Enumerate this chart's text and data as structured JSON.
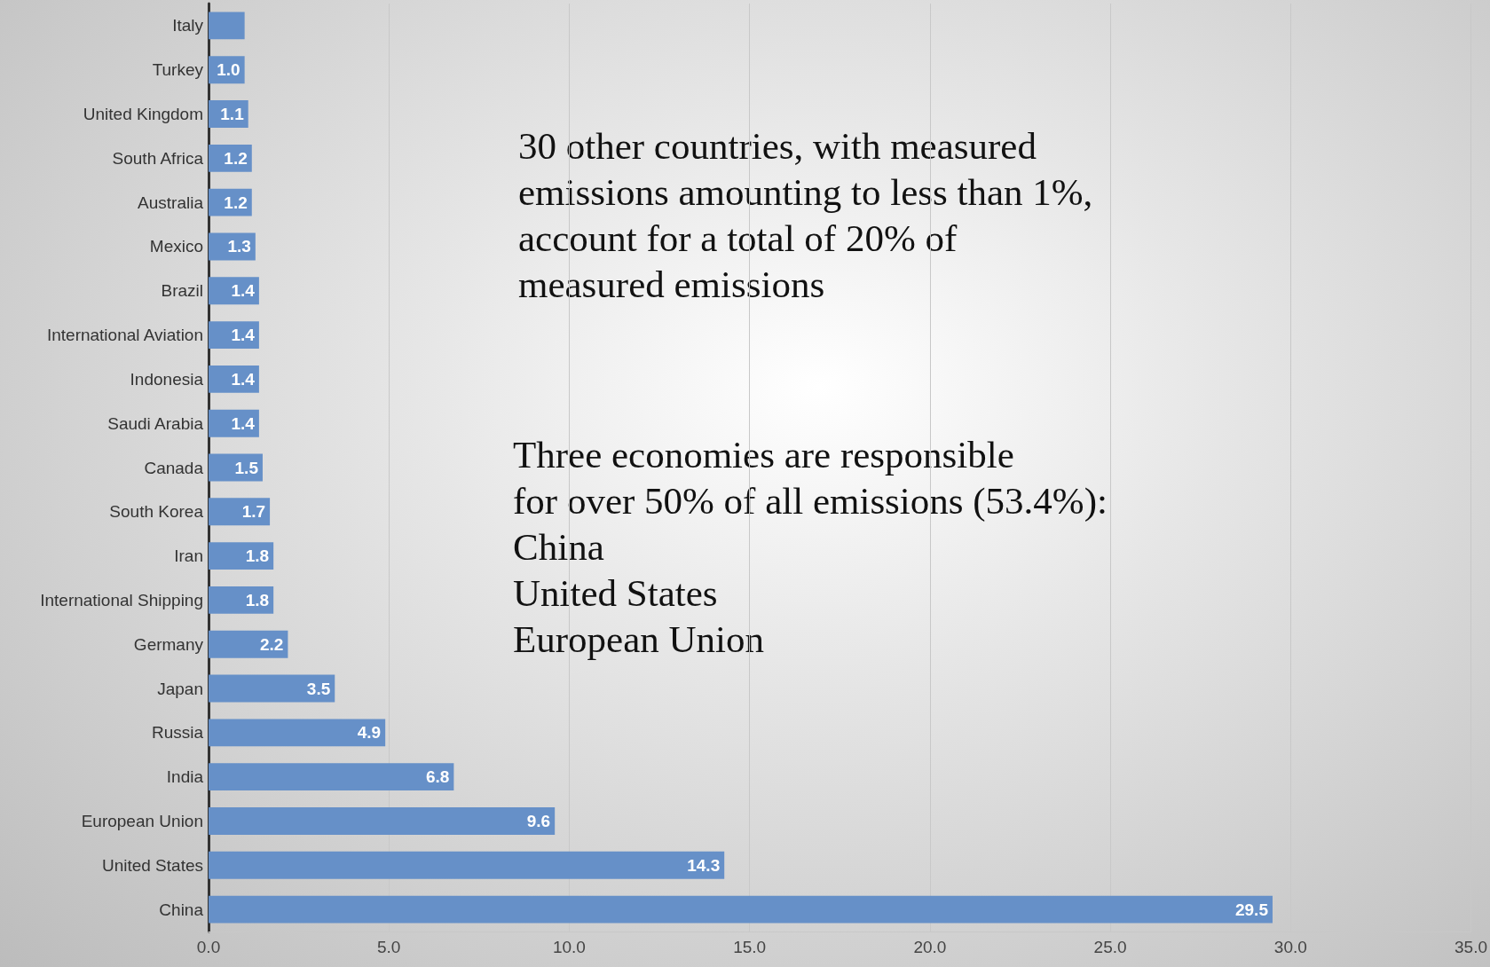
{
  "chart_data": {
    "type": "bar",
    "orientation": "horizontal",
    "categories": [
      "Italy",
      "Turkey",
      "United Kingdom",
      "South Africa",
      "Australia",
      "Mexico",
      "Brazil",
      "International Aviation",
      "Indonesia",
      "Saudi Arabia",
      "Canada",
      "South Korea",
      "Iran",
      "International Shipping",
      "Germany",
      "Japan",
      "Russia",
      "India",
      "European Union",
      "United States",
      "China"
    ],
    "values": [
      1.0,
      1.0,
      1.1,
      1.2,
      1.2,
      1.3,
      1.4,
      1.4,
      1.4,
      1.4,
      1.5,
      1.7,
      1.8,
      1.8,
      2.2,
      3.5,
      4.9,
      6.8,
      9.6,
      14.3,
      29.5
    ],
    "value_labels": [
      null,
      "1.0",
      "1.1",
      "1.2",
      "1.2",
      "1.3",
      "1.4",
      "1.4",
      "1.4",
      "1.4",
      "1.5",
      "1.7",
      "1.8",
      "1.8",
      "2.2",
      "3.5",
      "4.9",
      "6.8",
      "9.6",
      "14.3",
      "29.5"
    ],
    "color": "#6690c8",
    "xlim": [
      0,
      35
    ],
    "xticks": [
      {
        "value": 0,
        "label": "0.0"
      },
      {
        "value": 5,
        "label": "5.0"
      },
      {
        "value": 10,
        "label": "10.0"
      },
      {
        "value": 15,
        "label": "15.0"
      },
      {
        "value": 20,
        "label": "20.0"
      },
      {
        "value": 25,
        "label": "25.0"
      },
      {
        "value": 30,
        "label": "30.0"
      },
      {
        "value": 35,
        "label": "35.0"
      }
    ],
    "grid": "x",
    "annotations": [
      "30 other countries, with measured\nemissions amounting to less than 1%,\naccount for a total of 20% of\nmeasured emissions",
      "Three economies are responsible\nfor over 50% of all emissions (53.4%):\nChina\nUnited States\nEuropean Union"
    ]
  }
}
